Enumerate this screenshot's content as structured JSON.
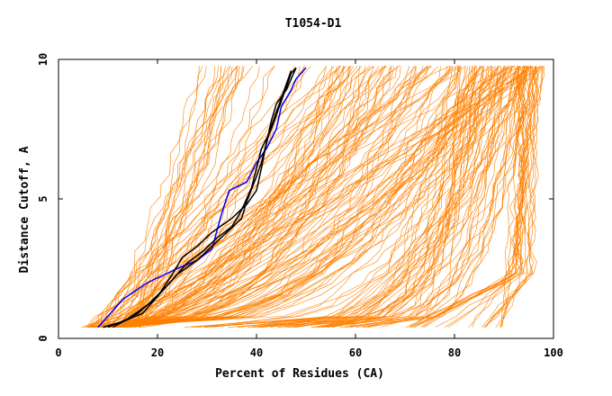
{
  "chart_data": {
    "type": "line",
    "title": "T1054-D1",
    "xlabel": "Percent of Residues (CA)",
    "ylabel": "Distance Cutoff, A",
    "xlim": [
      0,
      100
    ],
    "ylim": [
      0,
      10
    ],
    "x_ticks": [
      0,
      20,
      40,
      60,
      80,
      100
    ],
    "y_ticks": [
      0,
      5,
      10
    ],
    "grid": false,
    "legend": "none",
    "colors": {
      "models": "#ff8000",
      "highlight_blue": "#0000ff",
      "highlight_black": "#000000",
      "axes": "#000000"
    },
    "series": [
      {
        "color": "#0000ff",
        "x": [
          8,
          13,
          18,
          24,
          28,
          31,
          33,
          34.5,
          38,
          40,
          42,
          44,
          45,
          46,
          47,
          48,
          50
        ],
        "y": [
          0.4,
          1.4,
          2.0,
          2.5,
          2.8,
          3.2,
          4.5,
          5.3,
          5.6,
          6.3,
          6.8,
          7.5,
          8.3,
          8.6,
          8.9,
          9.3,
          9.7
        ]
      },
      {
        "color": "#000000",
        "x": [
          9,
          13,
          17,
          21,
          24,
          28,
          31,
          34,
          37,
          38,
          40,
          41,
          42,
          43,
          44,
          45,
          46,
          47
        ],
        "y": [
          0.4,
          0.6,
          0.9,
          1.7,
          2.3,
          2.8,
          3.3,
          3.8,
          4.3,
          4.9,
          5.8,
          6.3,
          7.0,
          7.6,
          8.1,
          8.6,
          9.1,
          9.6
        ]
      },
      {
        "color": "#000000",
        "x": [
          10,
          14,
          18,
          22,
          26,
          29,
          32,
          35,
          37,
          39,
          40,
          41,
          43,
          44,
          45,
          46,
          47,
          48
        ],
        "y": [
          0.4,
          0.7,
          1.2,
          1.9,
          2.7,
          3.1,
          3.6,
          4.0,
          4.6,
          5.4,
          6.1,
          6.8,
          7.5,
          8.0,
          8.5,
          9.0,
          9.5,
          9.7
        ]
      },
      {
        "color": "#000000",
        "x": [
          11,
          16,
          20,
          23,
          25,
          28,
          31,
          35,
          38,
          40,
          41,
          42,
          43,
          44,
          46,
          47,
          48
        ],
        "y": [
          0.4,
          0.9,
          1.5,
          2.3,
          2.9,
          3.3,
          3.8,
          4.3,
          4.8,
          5.3,
          6.1,
          7.0,
          7.8,
          8.4,
          8.9,
          9.3,
          9.7
        ]
      }
    ]
  }
}
